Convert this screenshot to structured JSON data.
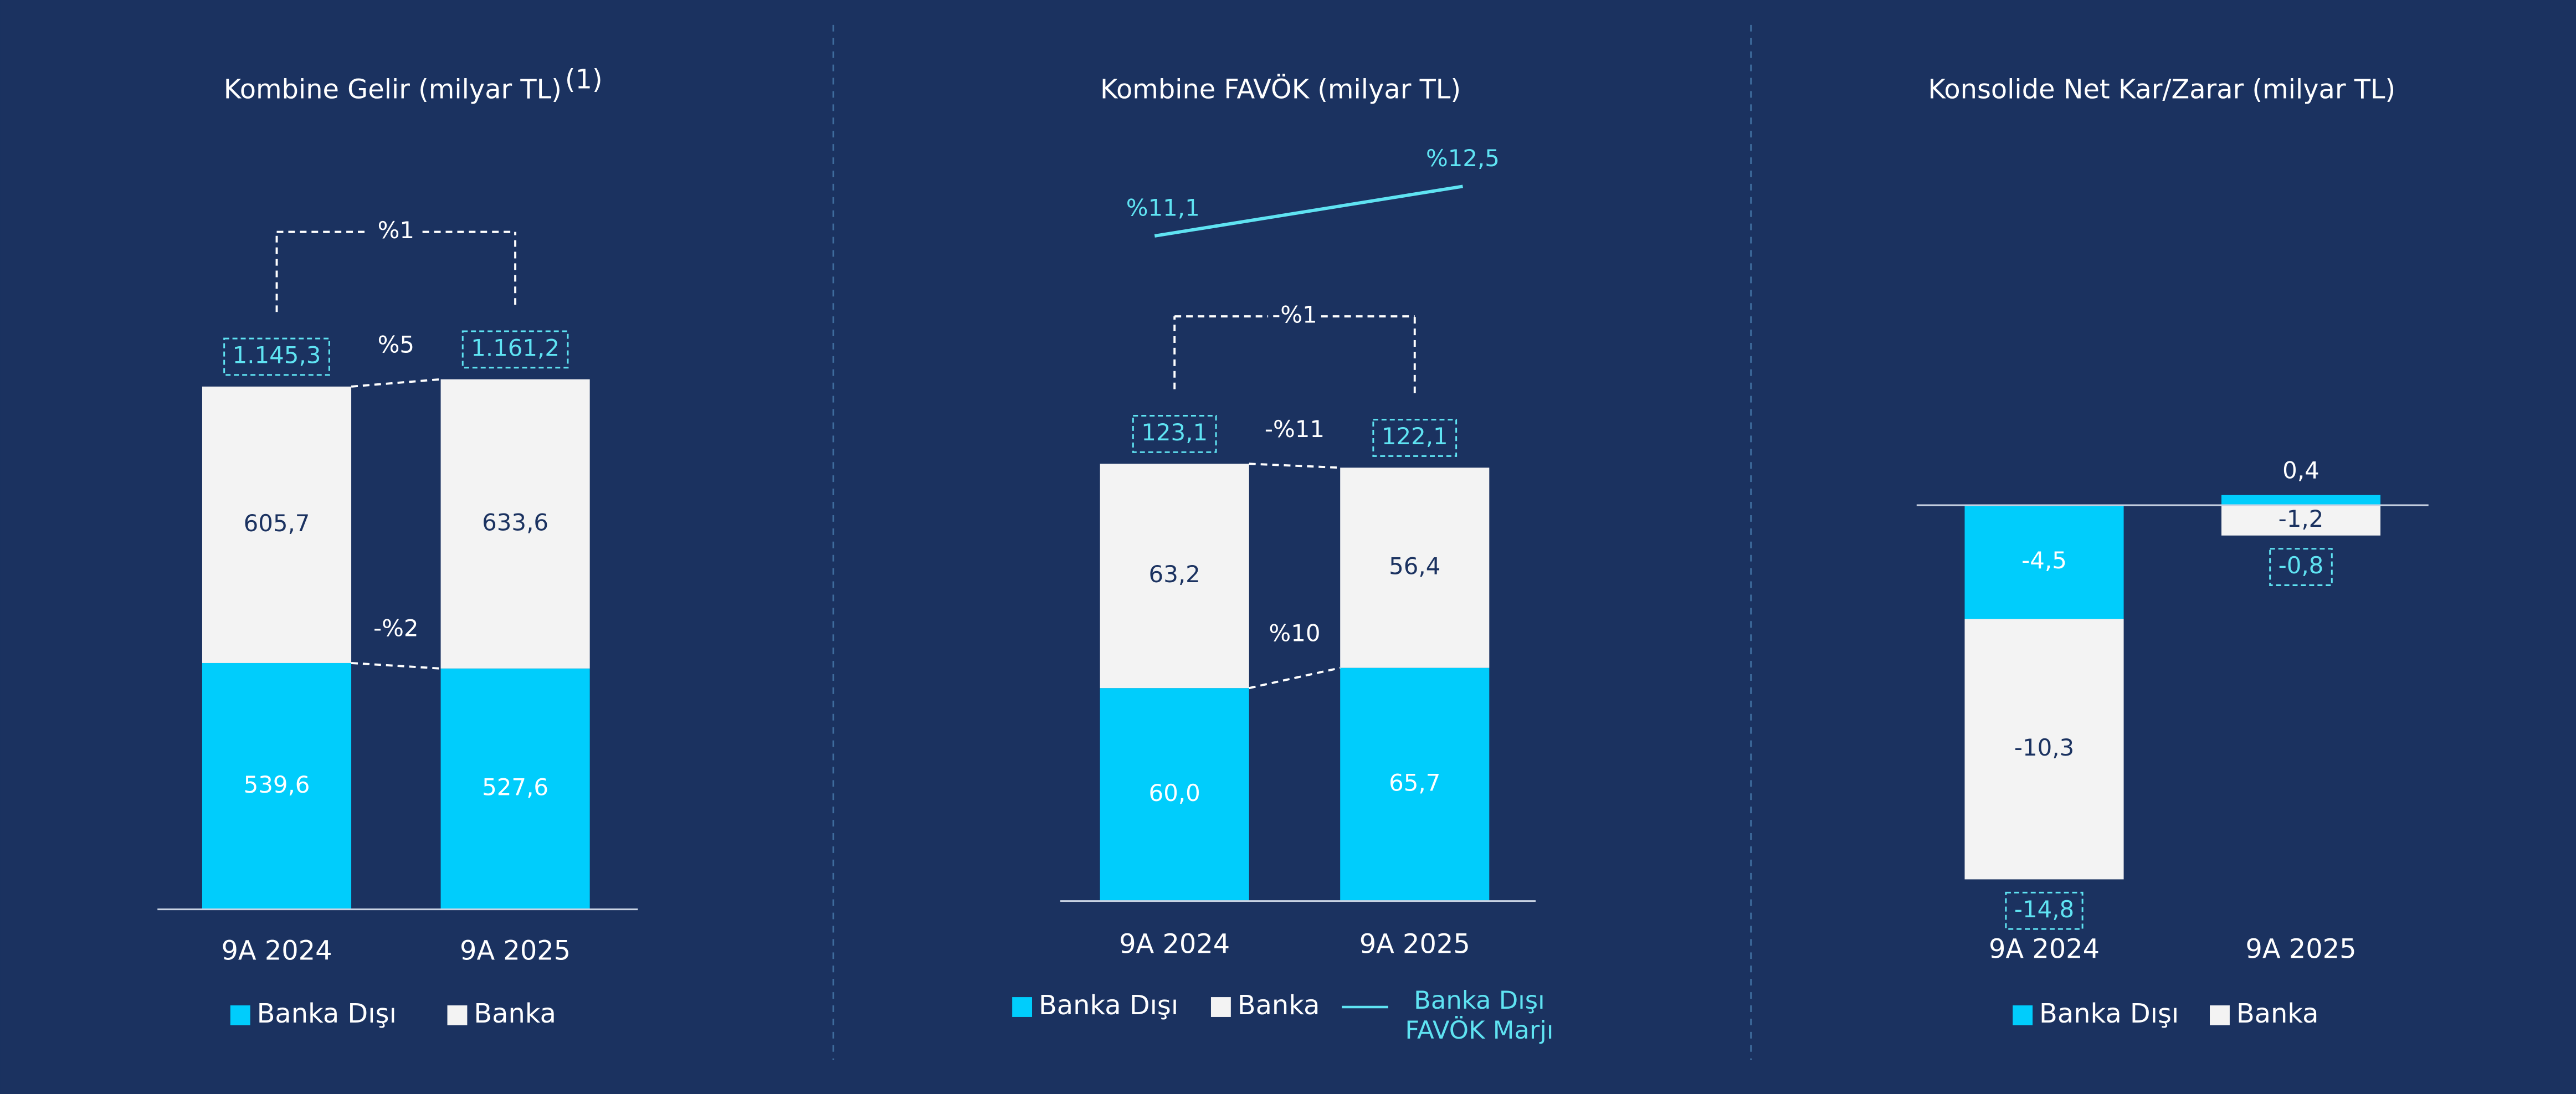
{
  "chart_data": [
    {
      "type": "stacked_bar",
      "title": "Kombine Gelir (milyar TL)",
      "title_note": "(1)",
      "categories": [
        "9A 2024",
        "9A 2025"
      ],
      "series": [
        {
          "name": "Banka Dışı",
          "color": "#00cdfc",
          "values": [
            539.6,
            527.6
          ],
          "value_labels": [
            "539,6",
            "527,6"
          ],
          "change_label": "-%2"
        },
        {
          "name": "Banka",
          "color": "#f3f3f3",
          "values": [
            605.7,
            633.6
          ],
          "value_labels": [
            "605,7",
            "633,6"
          ],
          "change_label": "%5"
        }
      ],
      "totals": {
        "values": [
          1145.3,
          1161.2
        ],
        "value_labels": [
          "1.145,3",
          "1.161,2"
        ],
        "change_label": "%1"
      }
    },
    {
      "type": "stacked_bar",
      "title": "Kombine FAVÖK (milyar TL)",
      "categories": [
        "9A 2024",
        "9A 2025"
      ],
      "series": [
        {
          "name": "Banka Dışı",
          "color": "#00cdfc",
          "values": [
            60.0,
            65.7
          ],
          "value_labels": [
            "60,0",
            "65,7"
          ],
          "change_label": "%10"
        },
        {
          "name": "Banka",
          "color": "#f3f3f3",
          "values": [
            63.2,
            56.4
          ],
          "value_labels": [
            "63,2",
            "56,4"
          ],
          "change_label": "-%11"
        },
        {
          "name": "Banka Dışı FAVÖK Marjı",
          "type": "line",
          "color": "#5fe3f2",
          "values": [
            11.1,
            12.5
          ],
          "value_labels": [
            "%11,1",
            "%12,5"
          ]
        }
      ],
      "totals": {
        "values": [
          123.1,
          122.1
        ],
        "value_labels": [
          "123,1",
          "122,1"
        ],
        "change_label": "-%1"
      }
    },
    {
      "type": "stacked_bar",
      "title": "Konsolide Net Kar/Zarar (milyar TL)",
      "categories": [
        "9A 2024",
        "9A 2025"
      ],
      "series": [
        {
          "name": "Banka Dışı",
          "color": "#00cdfc",
          "values": [
            -4.5,
            0.4
          ],
          "value_labels": [
            "-4,5",
            "0,4"
          ]
        },
        {
          "name": "Banka",
          "color": "#f3f3f3",
          "values": [
            -10.3,
            -1.2
          ],
          "value_labels": [
            "-10,3",
            "-1,2"
          ]
        }
      ],
      "totals": {
        "values": [
          -14.8,
          -0.8
        ],
        "value_labels": [
          "-14,8",
          "-0,8"
        ]
      }
    }
  ]
}
